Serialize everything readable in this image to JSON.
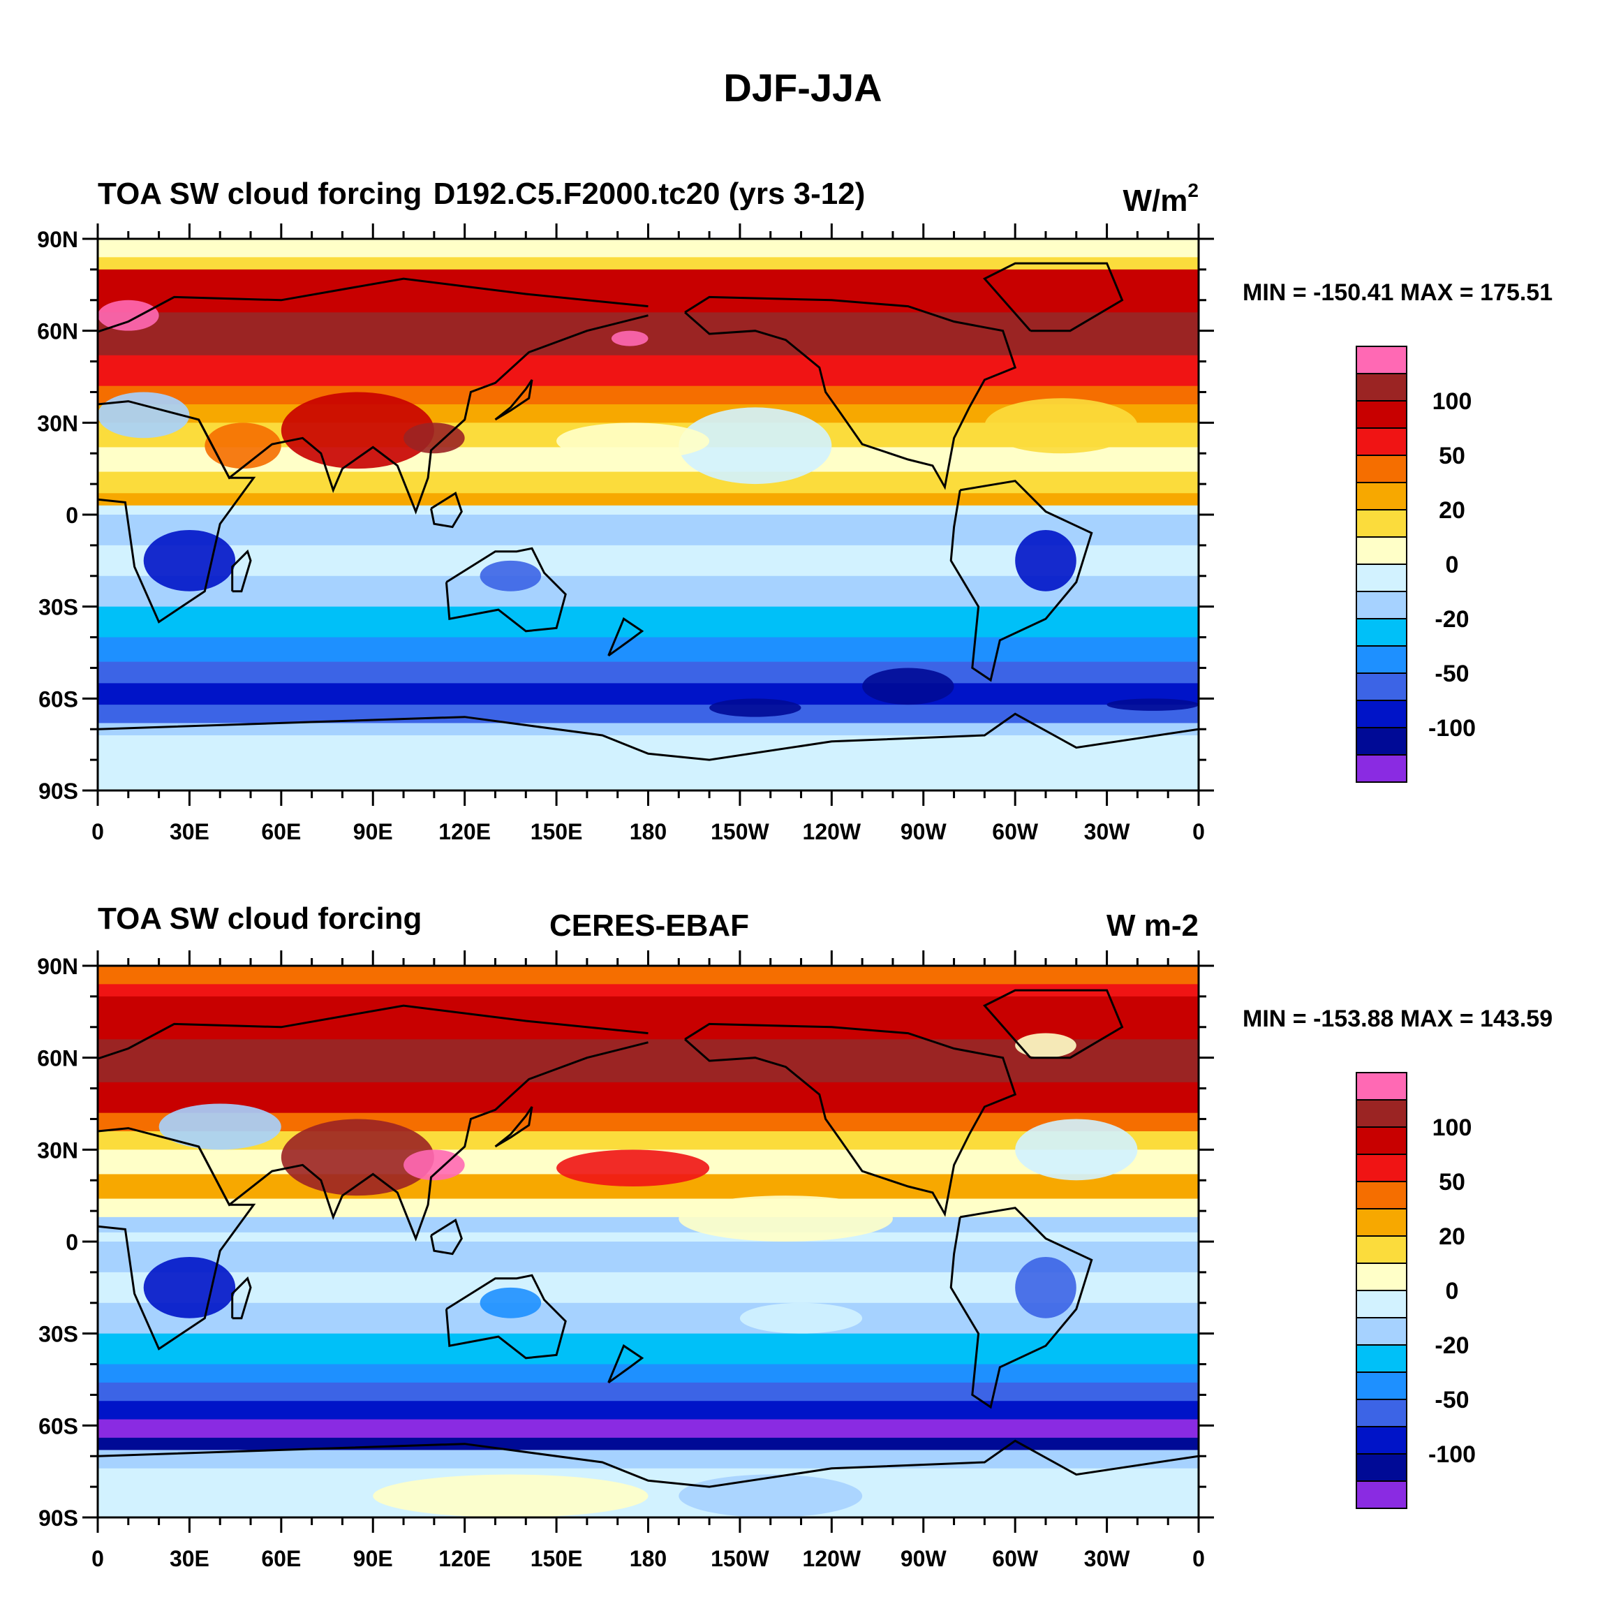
{
  "figure_title": "DJF-JJA",
  "panels": [
    {
      "left_title": "TOA SW cloud forcing",
      "center_title": "D192.C5.F2000.tc20 (yrs 3-12)",
      "units_base": "W/m",
      "units_sup": "2",
      "stats": "MIN = -150.41 MAX = 175.51"
    },
    {
      "left_title": "TOA SW cloud forcing",
      "center_title": "CERES-EBAF",
      "units_base": "W m-2",
      "units_sup": "",
      "stats": "MIN = -153.88 MAX = 143.59"
    }
  ],
  "lat_labels": [
    "90N",
    "60N",
    "30N",
    "0",
    "30S",
    "60S",
    "90S"
  ],
  "lon_labels": [
    "0",
    "30E",
    "60E",
    "90E",
    "120E",
    "150E",
    "180",
    "150W",
    "120W",
    "90W",
    "60W",
    "30W",
    "0"
  ],
  "colorbar": {
    "colors": [
      "#ff69b4",
      "#9b2423",
      "#c80000",
      "#f01414",
      "#f56e00",
      "#f7a800",
      "#fbdc3c",
      "#ffffc8",
      "#d2f2ff",
      "#a6d2ff",
      "#00c0f8",
      "#1e90ff",
      "#3c64e6",
      "#0014c8",
      "#000a96",
      "#8a2be2"
    ],
    "labels": [
      {
        "text": "100",
        "boundary": 2
      },
      {
        "text": "50",
        "boundary": 4
      },
      {
        "text": "20",
        "boundary": 6
      },
      {
        "text": "0",
        "boundary": 8
      },
      {
        "text": "-20",
        "boundary": 10
      },
      {
        "text": "-50",
        "boundary": 12
      },
      {
        "text": "-100",
        "boundary": 14
      }
    ]
  }
}
